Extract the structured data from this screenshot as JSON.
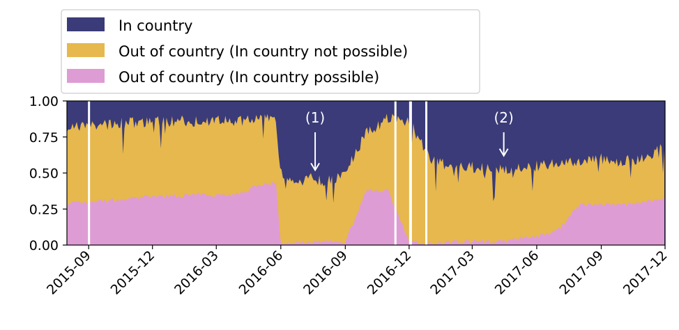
{
  "chart_data": {
    "type": "area",
    "stacked": true,
    "normalized": true,
    "title": "",
    "xlabel": "",
    "ylabel": "",
    "x_range": [
      "2015-08-01",
      "2017-12-01"
    ],
    "ylim": [
      0,
      1
    ],
    "x_tick_labels": [
      "2015-09",
      "2015-12",
      "2016-03",
      "2016-06",
      "2016-09",
      "2016-12",
      "2017-03",
      "2017-06",
      "2017-09",
      "2017-12"
    ],
    "y_tick_labels": [
      "0.00",
      "0.25",
      "0.50",
      "0.75",
      "1.00"
    ],
    "legend": {
      "placement": "top-left, above plot",
      "entries": [
        "In country",
        "Out of country (In country not possible)",
        "Out of country (In country possible)"
      ]
    },
    "series_colors": [
      "#3a3b78",
      "#e6b84e",
      "#de9cd4"
    ],
    "gaps": [
      [
        "2015-08-31",
        "2015-09-02"
      ],
      [
        "2016-11-10",
        "2016-11-13"
      ],
      [
        "2016-12-01",
        "2016-12-05"
      ],
      [
        "2016-12-24",
        "2016-12-27"
      ]
    ],
    "x": [
      "2015-08-01",
      "2015-09-01",
      "2015-10-01",
      "2015-11-01",
      "2015-12-01",
      "2016-01-01",
      "2016-02-01",
      "2016-03-01",
      "2016-04-01",
      "2016-05-01",
      "2016-05-25",
      "2016-06-01",
      "2016-07-01",
      "2016-07-15",
      "2016-08-01",
      "2016-09-01",
      "2016-10-01",
      "2016-11-01",
      "2016-12-01",
      "2017-01-01",
      "2017-02-01",
      "2017-03-01",
      "2017-04-01",
      "2017-05-01",
      "2017-06-01",
      "2017-07-01",
      "2017-08-01",
      "2017-09-01",
      "2017-10-01",
      "2017-11-01",
      "2017-12-01"
    ],
    "series": [
      {
        "name": "In country",
        "values": [
          0.18,
          0.17,
          0.16,
          0.15,
          0.14,
          0.14,
          0.14,
          0.14,
          0.14,
          0.13,
          0.13,
          0.5,
          0.58,
          0.52,
          0.57,
          0.5,
          0.22,
          0.12,
          0.14,
          0.42,
          0.45,
          0.46,
          0.48,
          0.47,
          0.45,
          0.44,
          0.42,
          0.4,
          0.42,
          0.4,
          0.32
        ]
      },
      {
        "name": "Out of country (In country not possible)",
        "values": [
          0.53,
          0.53,
          0.53,
          0.53,
          0.52,
          0.52,
          0.51,
          0.51,
          0.51,
          0.45,
          0.44,
          0.5,
          0.4,
          0.46,
          0.41,
          0.48,
          0.4,
          0.5,
          0.84,
          0.57,
          0.53,
          0.51,
          0.5,
          0.49,
          0.49,
          0.46,
          0.3,
          0.32,
          0.3,
          0.3,
          0.36
        ]
      },
      {
        "name": "Out of country (In country possible)",
        "values": [
          0.29,
          0.3,
          0.31,
          0.32,
          0.34,
          0.34,
          0.35,
          0.35,
          0.35,
          0.42,
          0.43,
          0.0,
          0.02,
          0.02,
          0.02,
          0.02,
          0.38,
          0.38,
          0.02,
          0.01,
          0.02,
          0.03,
          0.02,
          0.04,
          0.06,
          0.1,
          0.28,
          0.28,
          0.28,
          0.3,
          0.32
        ]
      }
    ],
    "annotations": [
      {
        "text": "(1)",
        "date": "2016-07-20",
        "arrow_to_y": 0.52
      },
      {
        "text": "(2)",
        "date": "2017-04-15",
        "arrow_to_y": 0.62
      }
    ]
  }
}
